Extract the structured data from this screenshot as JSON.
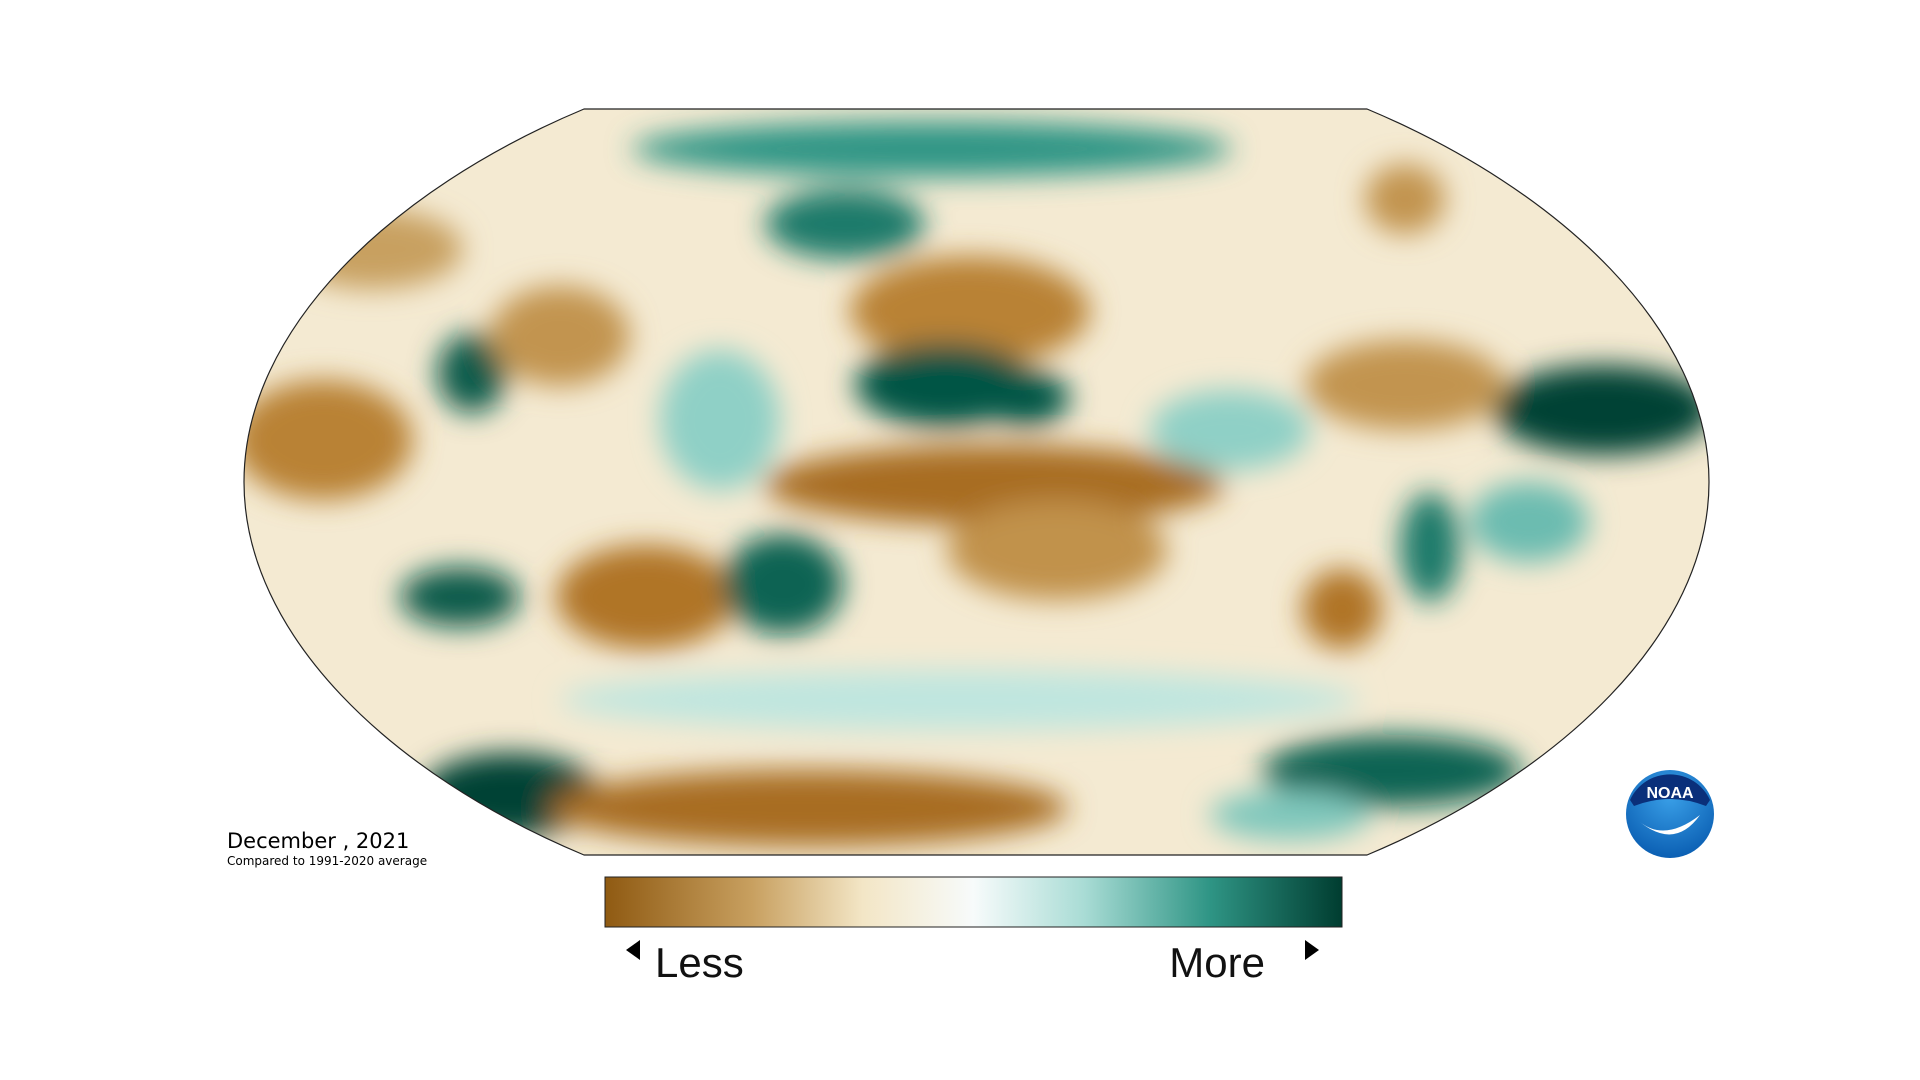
{
  "map": {
    "title": "December , 2021",
    "subtitle": "Compared to 1991-2020 average"
  },
  "legend": {
    "low_label": "Less",
    "high_label": "More"
  },
  "logo": {
    "text": "NOAA"
  }
}
